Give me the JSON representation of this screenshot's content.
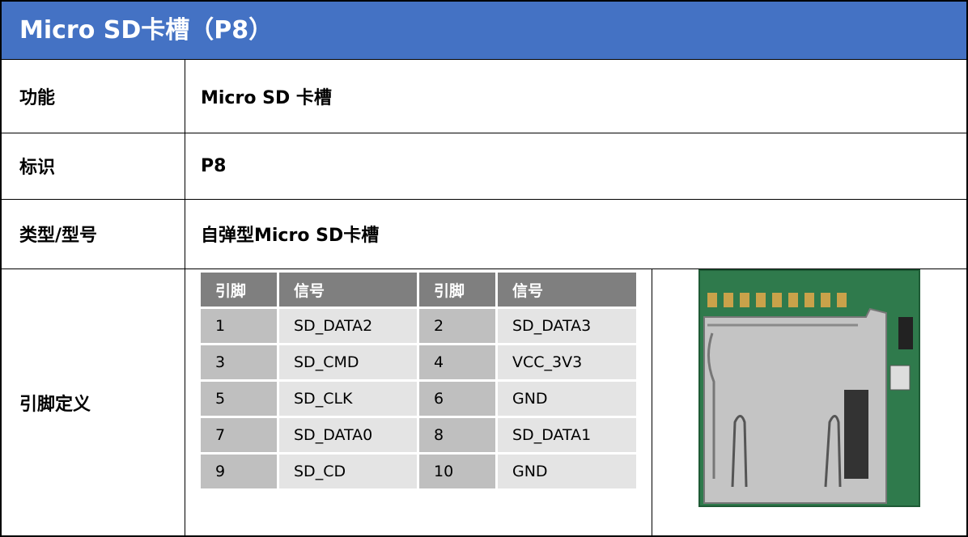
{
  "header": {
    "title": "Micro SD卡槽（P8）"
  },
  "rows": [
    {
      "label": "功能",
      "value": "Micro SD 卡槽"
    },
    {
      "label": "标识",
      "value": "P8"
    },
    {
      "label": "类型/型号",
      "value": "自弹型Micro SD卡槽"
    },
    {
      "label": "引脚定义"
    }
  ],
  "pin_table": {
    "headers": [
      "引脚",
      "信号",
      "引脚",
      "信号"
    ],
    "rows": [
      [
        "1",
        "SD_DATA2",
        "2",
        "SD_DATA3"
      ],
      [
        "3",
        "SD_CMD",
        "4",
        "VCC_3V3"
      ],
      [
        "5",
        "SD_CLK",
        "6",
        "GND"
      ],
      [
        "7",
        "SD_DATA0",
        "8",
        "SD_DATA1"
      ],
      [
        "9",
        "SD_CD",
        "10",
        "GND"
      ]
    ]
  }
}
